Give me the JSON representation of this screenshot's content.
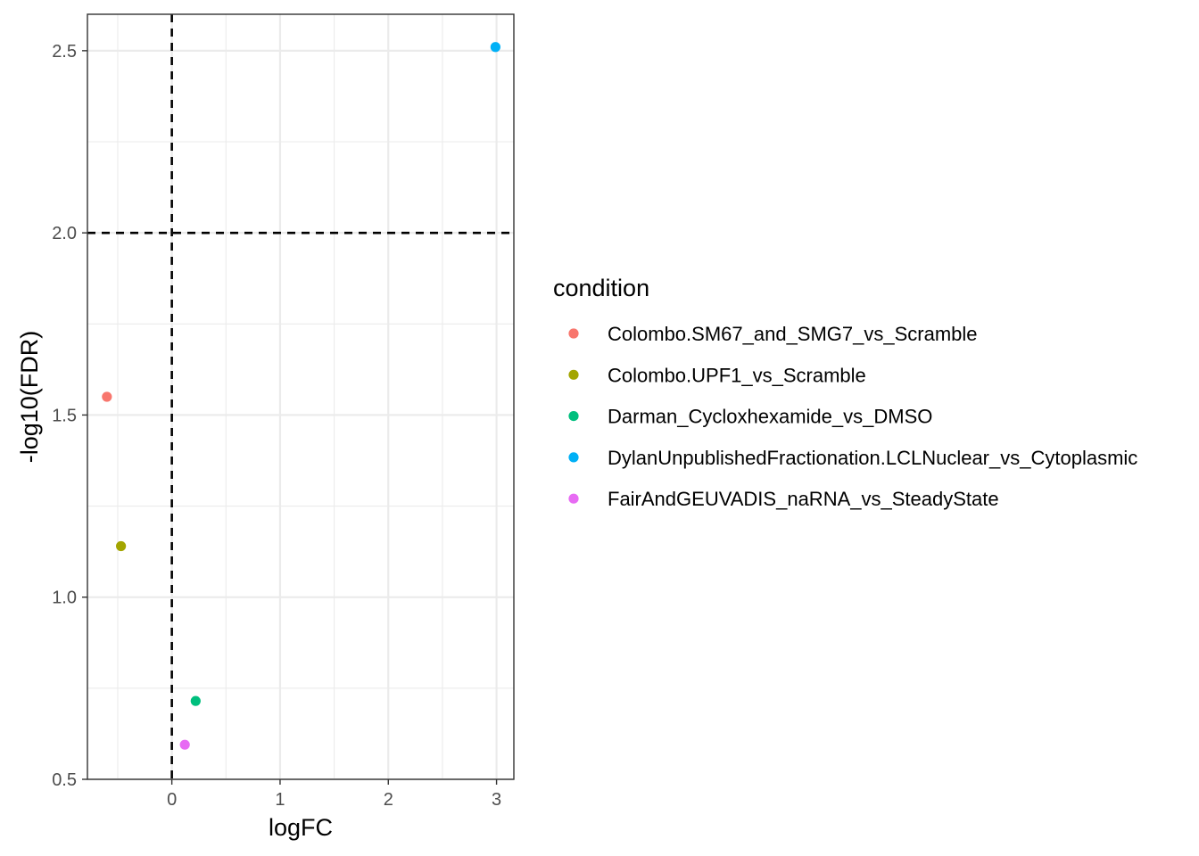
{
  "chart_data": {
    "type": "scatter",
    "xlabel": "logFC",
    "ylabel": "-log10(FDR)",
    "xlim": [
      -0.78,
      3.16
    ],
    "ylim": [
      0.5,
      2.6
    ],
    "x_ticks": [
      0,
      1,
      2,
      3
    ],
    "x_tick_labels": [
      "0",
      "1",
      "2",
      "3"
    ],
    "y_ticks": [
      0.5,
      1.0,
      1.5,
      2.0,
      2.5
    ],
    "y_tick_labels": [
      "0.5",
      "1.0",
      "1.5",
      "2.0",
      "2.5"
    ],
    "x_minor": [
      -0.5,
      0.5,
      1.5,
      2.5
    ],
    "y_minor": [
      0.75,
      1.25,
      1.75,
      2.25
    ],
    "reference_lines": {
      "vertical_x": 0,
      "horizontal_y": 2.0,
      "style": "dashed"
    },
    "grid": true,
    "legend": {
      "title": "condition",
      "placement": "right"
    },
    "series": [
      {
        "name": "Colombo.SM67_and_SMG7_vs_Scramble",
        "color": "#F8766D",
        "x": [
          -0.6
        ],
        "y": [
          1.55
        ]
      },
      {
        "name": "Colombo.UPF1_vs_Scramble",
        "color": "#A3A500",
        "x": [
          -0.47
        ],
        "y": [
          1.14
        ]
      },
      {
        "name": "Darman_Cycloxhexamide_vs_DMSO",
        "color": "#00BF7D",
        "x": [
          0.22
        ],
        "y": [
          0.715
        ]
      },
      {
        "name": "DylanUnpublishedFractionation.LCLNuclear_vs_Cytoplasmic",
        "color": "#00B0F6",
        "x": [
          2.99
        ],
        "y": [
          2.51
        ]
      },
      {
        "name": "FairAndGEUVADIS_naRNA_vs_SteadyState",
        "color": "#E76BF3",
        "x": [
          0.12
        ],
        "y": [
          0.595
        ]
      }
    ]
  }
}
